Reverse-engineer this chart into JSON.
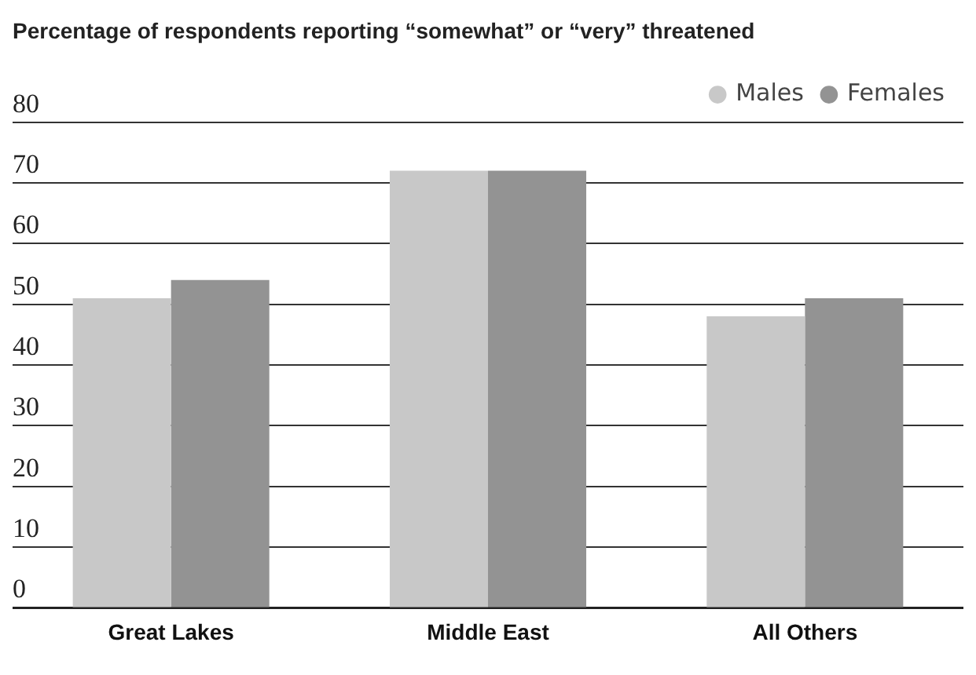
{
  "chart_data": {
    "type": "bar",
    "title": "Percentage of respondents reporting “somewhat” or “very” threatened",
    "categories": [
      "Great Lakes",
      "Middle East",
      "All Others"
    ],
    "series": [
      {
        "name": "Males",
        "color": "#c8c8c8",
        "values": [
          51,
          72,
          48
        ]
      },
      {
        "name": "Females",
        "color": "#939393",
        "values": [
          54,
          72,
          51
        ]
      }
    ],
    "ylim": [
      0,
      80
    ],
    "yticks": [
      0,
      10,
      20,
      30,
      40,
      50,
      60,
      70,
      80
    ],
    "grid": "y",
    "legend": "top right"
  }
}
